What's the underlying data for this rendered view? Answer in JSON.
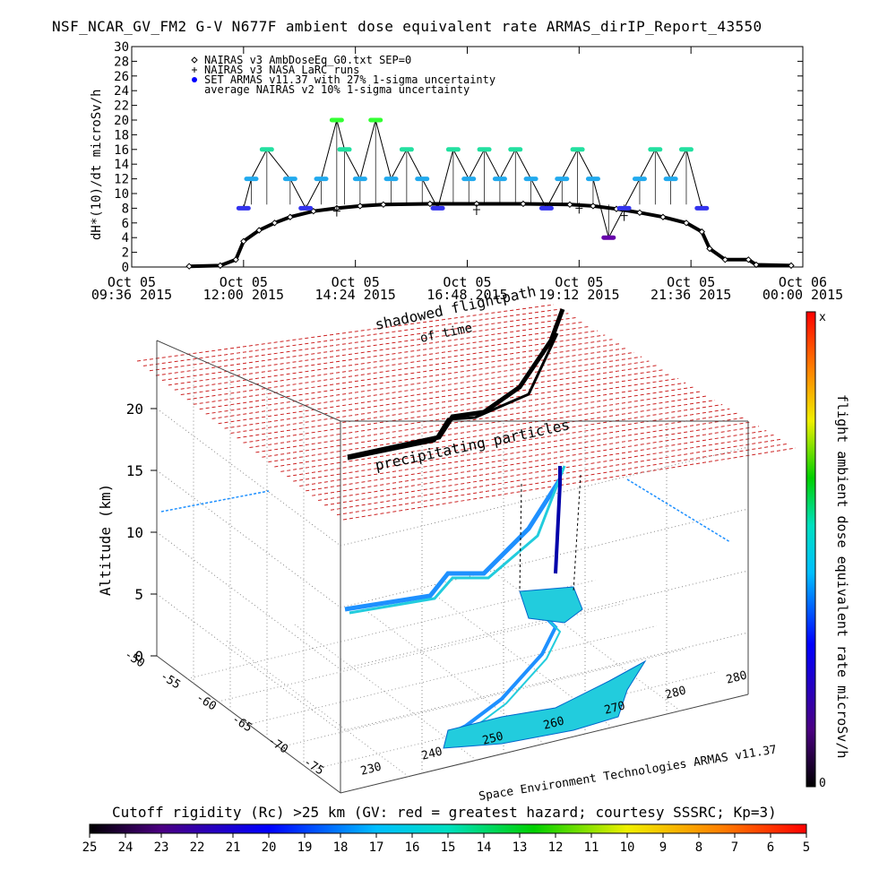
{
  "header": {
    "title": "NSF_NCAR_GV_FM2 G-V    N677F  ambient dose equivalent rate ARMAS_dirIP_Report_43550"
  },
  "time_plot": {
    "ylabel": "dH*(10)/dt microSv/h",
    "legend": [
      {
        "marker": "diamond",
        "text": "NAIRAS v3 AmbDoseEq_G0.txt SEP=0"
      },
      {
        "marker": "plus",
        "text": "NAIRAS v3 NASA LaRC runs"
      },
      {
        "marker": "dot",
        "text": "SET ARMAS v11.37 with 27% 1-sigma uncertainty"
      },
      {
        "marker": "none",
        "text": "average NAIRAS v2 10% 1-sigma uncertainty"
      }
    ],
    "x_ticks": [
      {
        "l1": "Oct 05",
        "l2": "09:36 2015"
      },
      {
        "l1": "Oct 05",
        "l2": "12:00 2015"
      },
      {
        "l1": "Oct 05",
        "l2": "14:24 2015"
      },
      {
        "l1": "Oct 05",
        "l2": "16:48 2015"
      },
      {
        "l1": "Oct 05",
        "l2": "19:12 2015"
      },
      {
        "l1": "Oct 05",
        "l2": "21:36 2015"
      },
      {
        "l1": "Oct 06",
        "l2": "00:00 2015"
      }
    ],
    "y_ticks": [
      "0",
      "2",
      "4",
      "6",
      "8",
      "10",
      "12",
      "14",
      "16",
      "18",
      "20",
      "22",
      "24",
      "26",
      "28",
      "30"
    ]
  },
  "globe_plot": {
    "zlabel": "Altitude (km)",
    "z_ticks": [
      "0",
      "5",
      "10",
      "15",
      "20"
    ],
    "lat_ticks": [
      "-50",
      "-55",
      "-60",
      "-65",
      "-70",
      "-75"
    ],
    "lon_ticks": [
      "230",
      "240",
      "250",
      "260",
      "270",
      "280",
      "280"
    ],
    "label_shadow": "shadowed flightpath",
    "label_time": "of time",
    "label_particles": "precipitating particles",
    "credit": "Space Environment Technologies ARMAS v11.37"
  },
  "right_colorbar": {
    "label": "flight ambient dose equivalent rate microSv/h",
    "top": "x",
    "bottom": "0"
  },
  "bottom_colorbar": {
    "title": "Cutoff rigidity (Rc) >25 km (GV: red = greatest hazard; courtesy SSSRC; Kp=3)",
    "ticks": [
      "25",
      "24",
      "23",
      "22",
      "21",
      "20",
      "19",
      "18",
      "17",
      "16",
      "15",
      "14",
      "13",
      "12",
      "11",
      "10",
      "9",
      "8",
      "7",
      "6",
      "5"
    ]
  },
  "chart_data": [
    {
      "type": "scatter",
      "title": "NSF_NCAR_GV_FM2 G-V    N677F  ambient dose equivalent rate ARMAS_dirIP_Report_43550",
      "xlabel": "",
      "ylabel": "dH*(10)/dt microSv/h",
      "ylim": [
        0,
        30
      ],
      "xlim": [
        "2015-10-05 09:36",
        "2015-10-06 00:00"
      ],
      "series": [
        {
          "name": "NAIRAS v3 AmbDoseEq_G0.txt SEP=0",
          "x": [
            "2015-10-05 10:50",
            "2015-10-05 11:30",
            "2015-10-05 11:50",
            "2015-10-05 12:00",
            "2015-10-05 12:20",
            "2015-10-05 12:40",
            "2015-10-05 13:00",
            "2015-10-05 13:30",
            "2015-10-05 14:00",
            "2015-10-05 14:30",
            "2015-10-05 15:00",
            "2015-10-05 16:00",
            "2015-10-05 17:00",
            "2015-10-05 18:00",
            "2015-10-05 19:00",
            "2015-10-05 19:30",
            "2015-10-05 20:00",
            "2015-10-05 20:30",
            "2015-10-05 21:00",
            "2015-10-05 21:30",
            "2015-10-05 21:50",
            "2015-10-05 22:00",
            "2015-10-05 22:20",
            "2015-10-05 22:50",
            "2015-10-05 23:00",
            "2015-10-05 23:45"
          ],
          "y": [
            0.1,
            0.2,
            1.0,
            3.5,
            5.0,
            6.0,
            6.8,
            7.6,
            8.0,
            8.3,
            8.5,
            8.6,
            8.6,
            8.6,
            8.5,
            8.3,
            7.9,
            7.4,
            6.8,
            6.0,
            4.8,
            2.5,
            1.0,
            1.0,
            0.3,
            0.2
          ]
        },
        {
          "name": "NAIRAS v3 NASA LaRC runs",
          "x": [
            "2015-10-05 14:00",
            "2015-10-05 17:00",
            "2015-10-05 19:12",
            "2015-10-05 20:10"
          ],
          "y": [
            7.6,
            7.8,
            8.0,
            7.0
          ]
        },
        {
          "name": "SET ARMAS v11.37 with 27% 1-sigma uncertainty",
          "x": [
            "2015-10-05 12:00",
            "2015-10-05 12:10",
            "2015-10-05 12:30",
            "2015-10-05 13:00",
            "2015-10-05 13:20",
            "2015-10-05 13:40",
            "2015-10-05 14:00",
            "2015-10-05 14:10",
            "2015-10-05 14:30",
            "2015-10-05 14:50",
            "2015-10-05 15:10",
            "2015-10-05 15:30",
            "2015-10-05 15:50",
            "2015-10-05 16:10",
            "2015-10-05 16:30",
            "2015-10-05 16:50",
            "2015-10-05 17:10",
            "2015-10-05 17:30",
            "2015-10-05 17:50",
            "2015-10-05 18:10",
            "2015-10-05 18:30",
            "2015-10-05 18:50",
            "2015-10-05 19:10",
            "2015-10-05 19:30",
            "2015-10-05 19:50",
            "2015-10-05 20:10",
            "2015-10-05 20:30",
            "2015-10-05 20:50",
            "2015-10-05 21:10",
            "2015-10-05 21:30",
            "2015-10-05 21:50"
          ],
          "y": [
            8,
            12,
            16,
            12,
            8,
            12,
            20,
            16,
            12,
            20,
            12,
            16,
            12,
            8,
            16,
            12,
            16,
            12,
            16,
            12,
            8,
            12,
            16,
            12,
            4,
            8,
            12,
            16,
            12,
            16,
            8
          ]
        }
      ]
    },
    {
      "type": "scatter",
      "title": "",
      "xlabel": "",
      "ylabel": "Altitude (km)",
      "zlim": [
        0,
        20
      ],
      "lat_range": [
        -75,
        -50
      ],
      "lon_range": [
        230,
        280
      ],
      "series": [
        {
          "name": "flight ambient dose equivalent rate microSv/h",
          "altitude_km": [
            0,
            2,
            5,
            7,
            9,
            11,
            12,
            14,
            15,
            13,
            11,
            9,
            6,
            4,
            1
          ]
        }
      ]
    }
  ]
}
